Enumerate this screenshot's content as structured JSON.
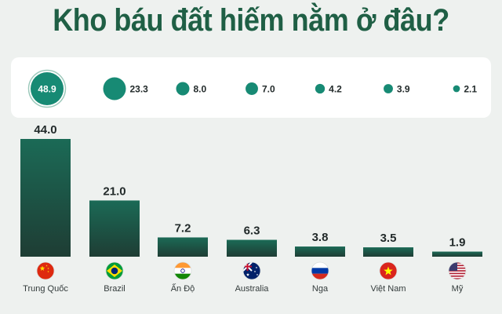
{
  "header": {
    "title": "Kho báu đất hiếm nằm ở đâu?"
  },
  "colors": {
    "title": "#1f5f45",
    "bar_top": "#1b6a56",
    "bar_bottom": "#1e3d34",
    "bubble": "#178a74",
    "label": "#222a2a"
  },
  "chart_data": [
    {
      "type": "bubble",
      "categories": [
        "Trung Quốc",
        "Brazil",
        "Ấn Độ",
        "Australia",
        "Nga",
        "Việt Nam",
        "Mỹ"
      ],
      "values": [
        48.9,
        23.3,
        8.0,
        7.0,
        4.2,
        3.9,
        2.1
      ],
      "value_labels": [
        "48.9",
        "23.3",
        "8.0",
        "7.0",
        "4.2",
        "3.9",
        "2.1"
      ]
    },
    {
      "type": "bar",
      "categories": [
        "Trung Quốc",
        "Brazil",
        "Ấn Độ",
        "Australia",
        "Nga",
        "Việt Nam",
        "Mỹ"
      ],
      "values": [
        44.0,
        21.0,
        7.2,
        6.3,
        3.8,
        3.5,
        1.9
      ],
      "value_labels": [
        "44.0",
        "21.0",
        "7.2",
        "6.3",
        "3.8",
        "3.5",
        "1.9"
      ],
      "flags": [
        "china-flag-icon",
        "brazil-flag-icon",
        "india-flag-icon",
        "australia-flag-icon",
        "russia-flag-icon",
        "vietnam-flag-icon",
        "usa-flag-icon"
      ],
      "ylim": [
        0,
        44.0
      ],
      "grid": false,
      "legend": "none"
    }
  ]
}
